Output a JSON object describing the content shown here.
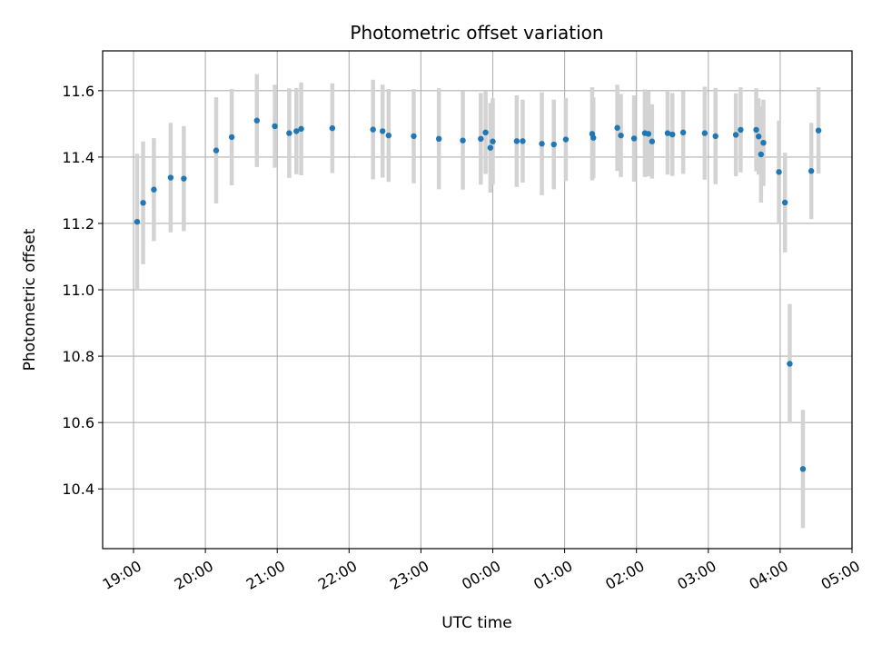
{
  "chart_data": {
    "type": "scatter",
    "title": "Photometric offset variation",
    "xlabel": "UTC time",
    "ylabel": "Photometric offset",
    "x_tick_labels": [
      "19:00",
      "20:00",
      "21:00",
      "22:00",
      "23:00",
      "00:00",
      "01:00",
      "02:00",
      "03:00",
      "04:00",
      "05:00"
    ],
    "y_ticks": [
      10.4,
      10.6,
      10.8,
      11.0,
      11.2,
      11.4,
      11.6
    ],
    "y_tick_labels": [
      "10.4",
      "10.6",
      "10.8",
      "11.0",
      "11.2",
      "11.4",
      "11.6"
    ],
    "xlim_hours": [
      18.57,
      29.0
    ],
    "ylim": [
      10.22,
      11.72
    ],
    "grid": true,
    "colors": {
      "point": "#1f77b4",
      "errorbar": "#d3d3d3",
      "grid": "#b0b0b0"
    },
    "series": [
      {
        "x": [
          "19:03",
          "19:08",
          "19:17",
          "19:31",
          "19:42",
          "20:09",
          "20:22",
          "20:43",
          "20:58",
          "21:10",
          "21:16",
          "21:20",
          "21:46",
          "22:20",
          "22:28",
          "22:33",
          "22:54",
          "23:15",
          "23:35",
          "23:50",
          "23:54",
          "23:58",
          "24:00",
          "24:20",
          "24:25",
          "24:41",
          "24:51",
          "25:01",
          "25:23",
          "25:24",
          "25:44",
          "25:47",
          "25:58",
          "26:07",
          "26:10",
          "26:13",
          "26:26",
          "26:30",
          "26:39",
          "26:57",
          "27:06",
          "27:23",
          "27:27",
          "27:40",
          "27:42",
          "27:44",
          "27:46",
          "27:59",
          "28:04",
          "28:08",
          "28:19",
          "28:26",
          "28:32"
        ],
        "y": [
          11.205,
          11.262,
          11.302,
          11.338,
          11.335,
          11.42,
          11.46,
          11.51,
          11.493,
          11.472,
          11.478,
          11.485,
          11.487,
          11.483,
          11.478,
          11.465,
          11.463,
          11.455,
          11.45,
          11.455,
          11.474,
          11.428,
          11.447,
          11.448,
          11.448,
          11.44,
          11.438,
          11.453,
          11.47,
          11.458,
          11.488,
          11.465,
          11.456,
          11.472,
          11.47,
          11.447,
          11.472,
          11.468,
          11.474,
          11.472,
          11.463,
          11.467,
          11.482,
          11.482,
          11.462,
          11.408,
          11.443,
          11.355,
          11.263,
          10.777,
          10.46,
          11.358,
          11.48
        ],
        "y_err": [
          0.205,
          0.185,
          0.155,
          0.165,
          0.158,
          0.16,
          0.145,
          0.14,
          0.125,
          0.135,
          0.13,
          0.14,
          0.135,
          0.15,
          0.14,
          0.14,
          0.142,
          0.152,
          0.148,
          0.138,
          0.125,
          0.135,
          0.13,
          0.138,
          0.125,
          0.155,
          0.135,
          0.125,
          0.14,
          0.122,
          0.13,
          0.125,
          0.13,
          0.132,
          0.128,
          0.112,
          0.125,
          0.125,
          0.125,
          0.14,
          0.145,
          0.125,
          0.128,
          0.125,
          0.115,
          0.145,
          0.13,
          0.155,
          0.15,
          0.18,
          0.178,
          0.145,
          0.13
        ]
      }
    ]
  }
}
